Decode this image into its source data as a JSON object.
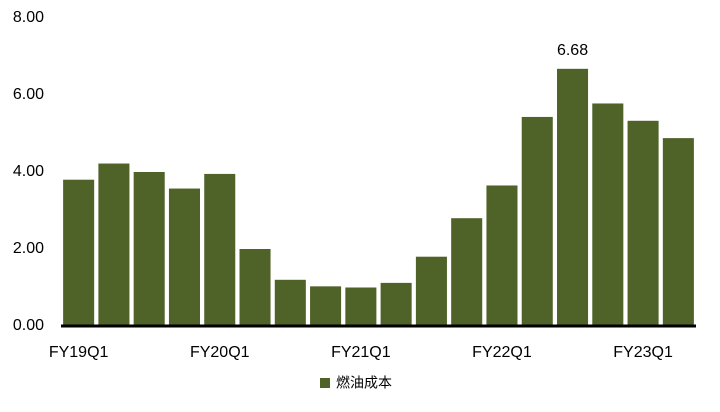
{
  "chart_data": {
    "type": "bar",
    "categories": [
      "FY19Q1",
      null,
      null,
      null,
      "FY20Q1",
      null,
      null,
      null,
      "FY21Q1",
      null,
      null,
      null,
      "FY22Q1",
      null,
      null,
      null,
      "FY23Q1",
      null
    ],
    "series": [
      {
        "name": "燃油成本",
        "color": "#4f6228",
        "values": [
          3.8,
          4.22,
          4.0,
          3.57,
          3.95,
          2.0,
          1.2,
          1.03,
          1.0,
          1.12,
          1.8,
          2.8,
          3.65,
          5.43,
          6.68,
          5.78,
          5.33,
          4.88
        ],
        "value_labels": [
          null,
          null,
          null,
          null,
          null,
          null,
          null,
          null,
          null,
          null,
          null,
          null,
          null,
          null,
          "6.68",
          null,
          null,
          null
        ]
      }
    ],
    "ylim": [
      0,
      8
    ],
    "yticks": [
      {
        "value": 0,
        "label": "0.00"
      },
      {
        "value": 2,
        "label": "2.00"
      },
      {
        "value": 4,
        "label": "4.00"
      },
      {
        "value": 6,
        "label": "6.00"
      },
      {
        "value": 8,
        "label": "8.00"
      }
    ],
    "legend": "bottom"
  }
}
